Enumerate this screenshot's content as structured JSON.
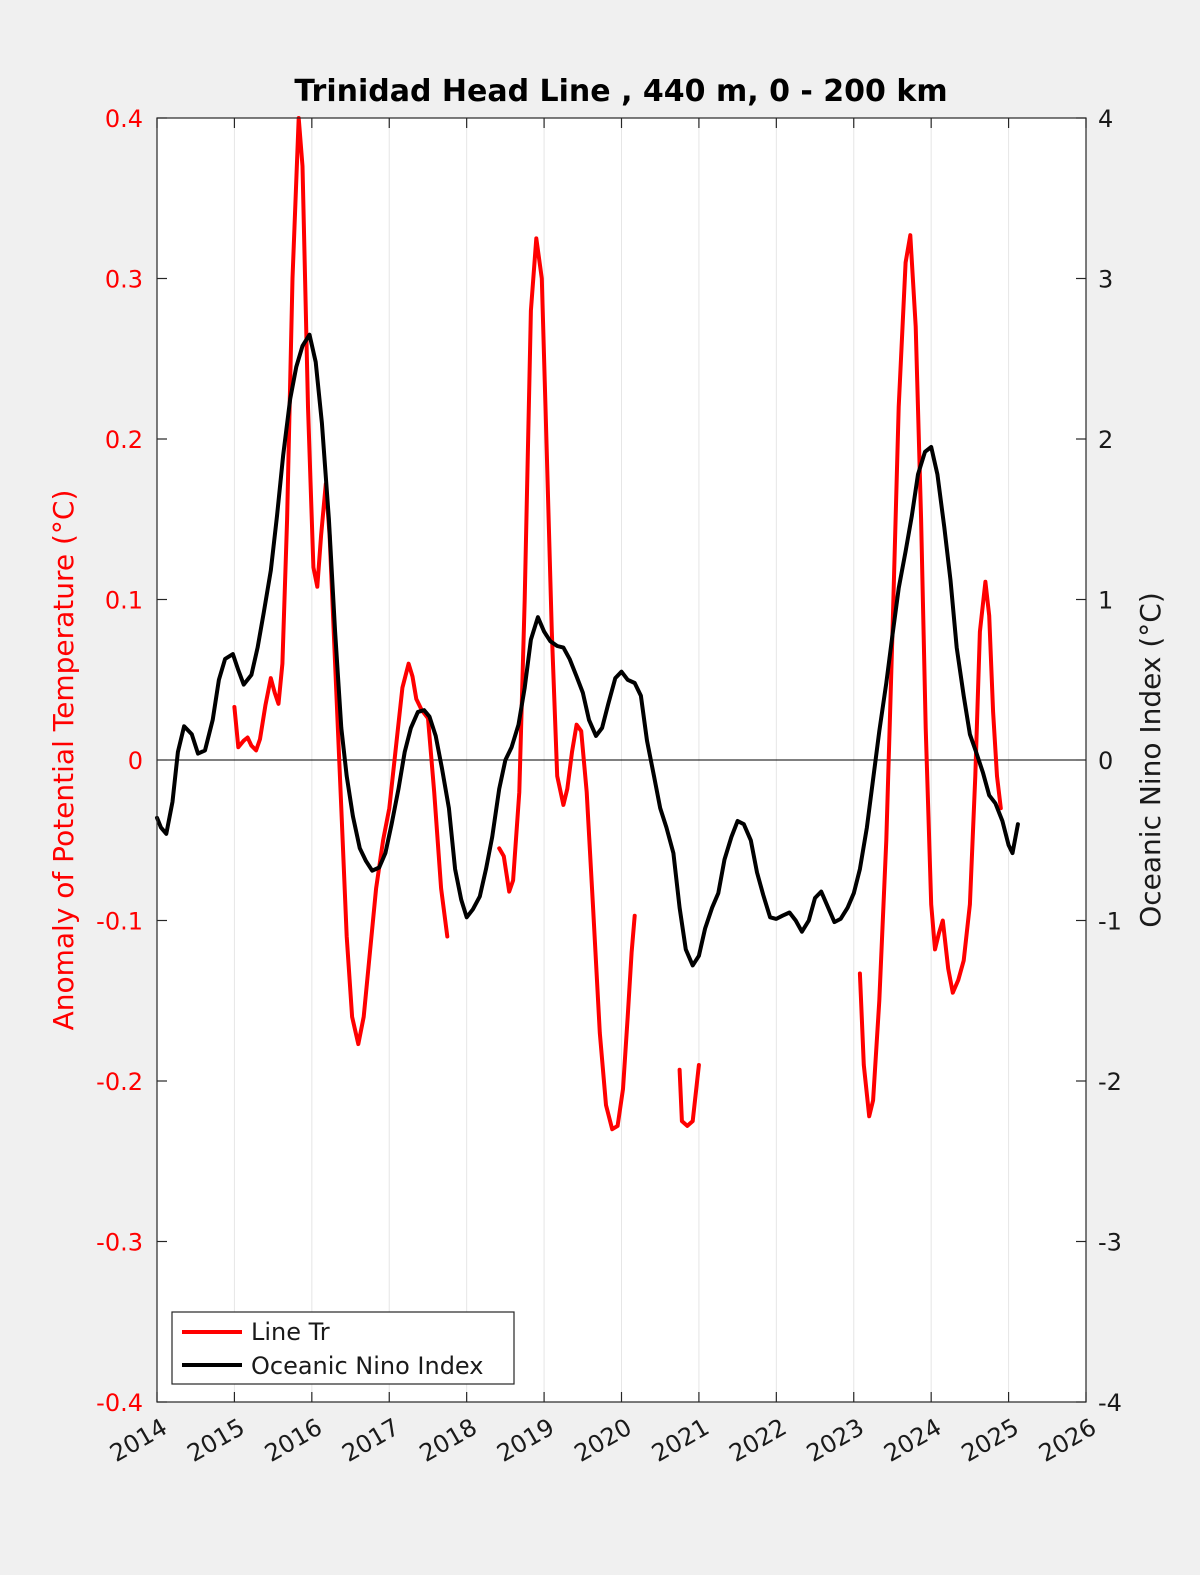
{
  "chart_data": {
    "type": "line",
    "title": "Trinidad Head Line , 440 m, 0 - 200 km",
    "xlabel": "",
    "ylabel_left": "Anomaly of Potential Temperature (°C)",
    "ylabel_right": "Oceanic Nino Index (°C)",
    "xlim": [
      2014,
      2026
    ],
    "ylim_left": [
      -0.4,
      0.4
    ],
    "ylim_right": [
      -4,
      4
    ],
    "x_ticks": [
      "2014",
      "2015",
      "2016",
      "2017",
      "2018",
      "2019",
      "2020",
      "2021",
      "2022",
      "2023",
      "2024",
      "2025",
      "2026"
    ],
    "y_ticks_left": [
      "-0.4",
      "-0.3",
      "-0.2",
      "-0.1",
      "0",
      "0.1",
      "0.2",
      "0.3",
      "0.4"
    ],
    "y_ticks_right": [
      "-4",
      "-3",
      "-2",
      "-1",
      "0",
      "1",
      "2",
      "3",
      "4"
    ],
    "grid": "vertical",
    "zero_line": true,
    "legend_position": "bottom-left",
    "colors": {
      "line_tr": "#ff0000",
      "oni": "#000000",
      "left_axis": "#ff0000",
      "right_axis": "#1a1a1a",
      "background": "#f0f0f0",
      "plot_bg": "#ffffff"
    },
    "series": [
      {
        "name": "Line Tr",
        "axis": "left",
        "color": "#ff0000",
        "segments": [
          [
            [
              2015.0,
              0.033
            ],
            [
              2015.05,
              0.008
            ],
            [
              2015.12,
              0.012
            ],
            [
              2015.17,
              0.014
            ],
            [
              2015.22,
              0.009
            ],
            [
              2015.28,
              0.006
            ],
            [
              2015.33,
              0.013
            ],
            [
              2015.4,
              0.034
            ],
            [
              2015.47,
              0.051
            ],
            [
              2015.52,
              0.042
            ],
            [
              2015.57,
              0.035
            ],
            [
              2015.62,
              0.06
            ],
            [
              2015.68,
              0.15
            ],
            [
              2015.75,
              0.3
            ],
            [
              2015.83,
              0.4
            ],
            [
              2015.88,
              0.37
            ],
            [
              2015.95,
              0.22
            ],
            [
              2016.02,
              0.12
            ],
            [
              2016.07,
              0.108
            ],
            [
              2016.12,
              0.14
            ],
            [
              2016.18,
              0.172
            ],
            [
              2016.23,
              0.14
            ],
            [
              2016.3,
              0.06
            ],
            [
              2016.38,
              -0.03
            ],
            [
              2016.45,
              -0.11
            ],
            [
              2016.52,
              -0.16
            ],
            [
              2016.6,
              -0.177
            ],
            [
              2016.67,
              -0.16
            ],
            [
              2016.75,
              -0.12
            ],
            [
              2016.83,
              -0.08
            ],
            [
              2016.92,
              -0.05
            ],
            [
              2017.0,
              -0.03
            ],
            [
              2017.08,
              0.005
            ],
            [
              2017.17,
              0.045
            ],
            [
              2017.25,
              0.06
            ],
            [
              2017.3,
              0.052
            ],
            [
              2017.35,
              0.038
            ],
            [
              2017.42,
              0.031
            ],
            [
              2017.5,
              0.026
            ],
            [
              2017.58,
              -0.02
            ],
            [
              2017.67,
              -0.08
            ],
            [
              2017.75,
              -0.11
            ]
          ],
          [
            [
              2018.42,
              -0.055
            ],
            [
              2018.48,
              -0.06
            ],
            [
              2018.55,
              -0.082
            ],
            [
              2018.6,
              -0.075
            ],
            [
              2018.68,
              -0.02
            ],
            [
              2018.75,
              0.1
            ],
            [
              2018.83,
              0.28
            ],
            [
              2018.9,
              0.325
            ],
            [
              2018.97,
              0.3
            ],
            [
              2019.03,
              0.2
            ],
            [
              2019.1,
              0.08
            ],
            [
              2019.17,
              -0.01
            ],
            [
              2019.25,
              -0.028
            ],
            [
              2019.3,
              -0.018
            ],
            [
              2019.36,
              0.005
            ],
            [
              2019.42,
              0.022
            ],
            [
              2019.48,
              0.018
            ],
            [
              2019.55,
              -0.02
            ],
            [
              2019.63,
              -0.09
            ],
            [
              2019.72,
              -0.17
            ],
            [
              2019.8,
              -0.215
            ],
            [
              2019.88,
              -0.23
            ],
            [
              2019.95,
              -0.228
            ],
            [
              2020.02,
              -0.205
            ],
            [
              2020.08,
              -0.16
            ],
            [
              2020.13,
              -0.12
            ],
            [
              2020.17,
              -0.097
            ]
          ],
          [
            [
              2020.75,
              -0.193
            ],
            [
              2020.78,
              -0.225
            ],
            [
              2020.85,
              -0.228
            ],
            [
              2020.92,
              -0.225
            ],
            [
              2021.0,
              -0.19
            ]
          ],
          [
            [
              2023.08,
              -0.133
            ],
            [
              2023.13,
              -0.19
            ],
            [
              2023.2,
              -0.222
            ],
            [
              2023.25,
              -0.212
            ],
            [
              2023.33,
              -0.15
            ],
            [
              2023.42,
              -0.05
            ],
            [
              2023.5,
              0.08
            ],
            [
              2023.58,
              0.22
            ],
            [
              2023.67,
              0.31
            ],
            [
              2023.73,
              0.327
            ],
            [
              2023.8,
              0.27
            ],
            [
              2023.87,
              0.15
            ],
            [
              2023.93,
              0.02
            ],
            [
              2024.0,
              -0.09
            ],
            [
              2024.05,
              -0.118
            ],
            [
              2024.1,
              -0.108
            ],
            [
              2024.15,
              -0.1
            ],
            [
              2024.22,
              -0.13
            ],
            [
              2024.28,
              -0.145
            ],
            [
              2024.35,
              -0.137
            ],
            [
              2024.42,
              -0.125
            ],
            [
              2024.5,
              -0.09
            ],
            [
              2024.57,
              -0.01
            ],
            [
              2024.63,
              0.08
            ],
            [
              2024.7,
              0.111
            ],
            [
              2024.75,
              0.09
            ],
            [
              2024.8,
              0.03
            ],
            [
              2024.85,
              -0.01
            ],
            [
              2024.9,
              -0.03
            ]
          ]
        ]
      },
      {
        "name": "Oceanic Nino Index",
        "axis": "right",
        "color": "#000000",
        "points": [
          [
            2014.0,
            -0.36
          ],
          [
            2014.05,
            -0.42
          ],
          [
            2014.12,
            -0.46
          ],
          [
            2014.2,
            -0.26
          ],
          [
            2014.27,
            0.05
          ],
          [
            2014.35,
            0.21
          ],
          [
            2014.45,
            0.16
          ],
          [
            2014.53,
            0.04
          ],
          [
            2014.62,
            0.06
          ],
          [
            2014.72,
            0.25
          ],
          [
            2014.8,
            0.5
          ],
          [
            2014.88,
            0.63
          ],
          [
            2014.98,
            0.66
          ],
          [
            2015.05,
            0.56
          ],
          [
            2015.12,
            0.47
          ],
          [
            2015.22,
            0.53
          ],
          [
            2015.3,
            0.7
          ],
          [
            2015.38,
            0.92
          ],
          [
            2015.47,
            1.18
          ],
          [
            2015.55,
            1.52
          ],
          [
            2015.63,
            1.9
          ],
          [
            2015.72,
            2.25
          ],
          [
            2015.8,
            2.45
          ],
          [
            2015.88,
            2.58
          ],
          [
            2015.97,
            2.65
          ],
          [
            2016.05,
            2.48
          ],
          [
            2016.13,
            2.1
          ],
          [
            2016.22,
            1.5
          ],
          [
            2016.3,
            0.8
          ],
          [
            2016.38,
            0.2
          ],
          [
            2016.45,
            -0.1
          ],
          [
            2016.53,
            -0.35
          ],
          [
            2016.62,
            -0.55
          ],
          [
            2016.7,
            -0.63
          ],
          [
            2016.78,
            -0.69
          ],
          [
            2016.87,
            -0.67
          ],
          [
            2016.95,
            -0.58
          ],
          [
            2017.03,
            -0.4
          ],
          [
            2017.12,
            -0.18
          ],
          [
            2017.2,
            0.05
          ],
          [
            2017.28,
            0.2
          ],
          [
            2017.37,
            0.3
          ],
          [
            2017.45,
            0.31
          ],
          [
            2017.52,
            0.27
          ],
          [
            2017.6,
            0.15
          ],
          [
            2017.68,
            -0.05
          ],
          [
            2017.77,
            -0.3
          ],
          [
            2017.85,
            -0.68
          ],
          [
            2017.93,
            -0.87
          ],
          [
            2018.0,
            -0.98
          ],
          [
            2018.08,
            -0.93
          ],
          [
            2018.17,
            -0.85
          ],
          [
            2018.25,
            -0.68
          ],
          [
            2018.33,
            -0.48
          ],
          [
            2018.42,
            -0.18
          ],
          [
            2018.5,
            0.0
          ],
          [
            2018.58,
            0.08
          ],
          [
            2018.67,
            0.22
          ],
          [
            2018.75,
            0.45
          ],
          [
            2018.83,
            0.75
          ],
          [
            2018.92,
            0.89
          ],
          [
            2019.0,
            0.8
          ],
          [
            2019.08,
            0.74
          ],
          [
            2019.17,
            0.71
          ],
          [
            2019.25,
            0.7
          ],
          [
            2019.33,
            0.63
          ],
          [
            2019.42,
            0.52
          ],
          [
            2019.5,
            0.42
          ],
          [
            2019.58,
            0.25
          ],
          [
            2019.67,
            0.15
          ],
          [
            2019.75,
            0.2
          ],
          [
            2019.83,
            0.35
          ],
          [
            2019.92,
            0.51
          ],
          [
            2020.0,
            0.55
          ],
          [
            2020.08,
            0.5
          ],
          [
            2020.17,
            0.48
          ],
          [
            2020.25,
            0.4
          ],
          [
            2020.33,
            0.12
          ],
          [
            2020.42,
            -0.1
          ],
          [
            2020.5,
            -0.3
          ],
          [
            2020.58,
            -0.42
          ],
          [
            2020.67,
            -0.58
          ],
          [
            2020.75,
            -0.92
          ],
          [
            2020.83,
            -1.18
          ],
          [
            2020.92,
            -1.28
          ],
          [
            2021.0,
            -1.22
          ],
          [
            2021.08,
            -1.05
          ],
          [
            2021.17,
            -0.92
          ],
          [
            2021.25,
            -0.83
          ],
          [
            2021.33,
            -0.62
          ],
          [
            2021.42,
            -0.48
          ],
          [
            2021.5,
            -0.38
          ],
          [
            2021.58,
            -0.4
          ],
          [
            2021.67,
            -0.5
          ],
          [
            2021.75,
            -0.7
          ],
          [
            2021.83,
            -0.84
          ],
          [
            2021.92,
            -0.98
          ],
          [
            2022.0,
            -0.99
          ],
          [
            2022.08,
            -0.97
          ],
          [
            2022.17,
            -0.95
          ],
          [
            2022.25,
            -1.0
          ],
          [
            2022.33,
            -1.07
          ],
          [
            2022.42,
            -1.0
          ],
          [
            2022.5,
            -0.86
          ],
          [
            2022.58,
            -0.82
          ],
          [
            2022.67,
            -0.92
          ],
          [
            2022.75,
            -1.01
          ],
          [
            2022.83,
            -0.99
          ],
          [
            2022.92,
            -0.92
          ],
          [
            2023.0,
            -0.83
          ],
          [
            2023.08,
            -0.68
          ],
          [
            2023.17,
            -0.42
          ],
          [
            2023.25,
            -0.12
          ],
          [
            2023.33,
            0.18
          ],
          [
            2023.42,
            0.48
          ],
          [
            2023.5,
            0.78
          ],
          [
            2023.58,
            1.07
          ],
          [
            2023.67,
            1.3
          ],
          [
            2023.75,
            1.52
          ],
          [
            2023.83,
            1.78
          ],
          [
            2023.92,
            1.92
          ],
          [
            2024.0,
            1.95
          ],
          [
            2024.08,
            1.78
          ],
          [
            2024.17,
            1.45
          ],
          [
            2024.25,
            1.12
          ],
          [
            2024.33,
            0.7
          ],
          [
            2024.42,
            0.4
          ],
          [
            2024.5,
            0.16
          ],
          [
            2024.58,
            0.05
          ],
          [
            2024.67,
            -0.08
          ],
          [
            2024.75,
            -0.22
          ],
          [
            2024.83,
            -0.27
          ],
          [
            2024.92,
            -0.38
          ],
          [
            2025.0,
            -0.53
          ],
          [
            2025.05,
            -0.58
          ],
          [
            2025.12,
            -0.4
          ]
        ]
      }
    ]
  }
}
